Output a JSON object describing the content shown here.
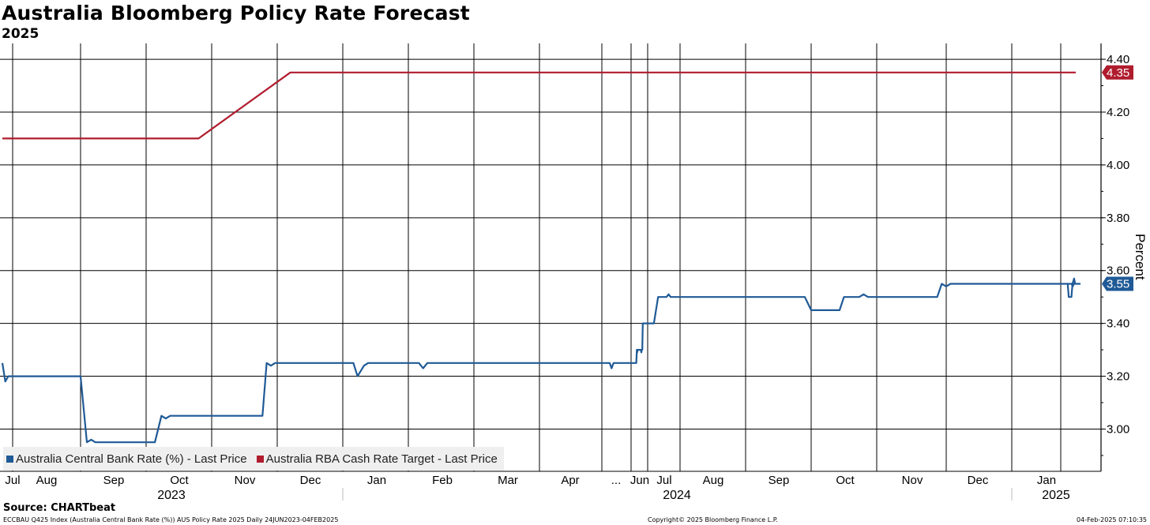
{
  "chart_data": {
    "type": "line",
    "title": "Australia Bloomberg Policy Rate Forecast",
    "subtitle": "2025",
    "ylabel": "Percent",
    "ylim": [
      2.84,
      4.46
    ],
    "yticks": [
      "4.40",
      "4.20",
      "4.00",
      "3.80",
      "3.60",
      "3.40",
      "3.20",
      "3.00"
    ],
    "x_month_labels": [
      "Jul",
      "Aug",
      "Sep",
      "Oct",
      "Nov",
      "Dec",
      "Jan",
      "Feb",
      "Mar",
      "Apr",
      "...",
      "Jun",
      "Jul",
      "Aug",
      "Sep",
      "Oct",
      "Nov",
      "Dec",
      "Jan"
    ],
    "x_year_labels": [
      "2023",
      "2024",
      "2025"
    ],
    "grid": true,
    "legend_position": "bottom-left",
    "series": [
      {
        "name": "Australia Central Bank Rate (%) - Last Price",
        "color": "#1f5a96",
        "last_value_label": "3.55",
        "points": [
          [
            "2023-06-24",
            3.25
          ],
          [
            "2023-06-26",
            3.18
          ],
          [
            "2023-06-28",
            3.2
          ],
          [
            "2023-08-01",
            3.2
          ],
          [
            "2023-08-04",
            2.95
          ],
          [
            "2023-08-06",
            2.96
          ],
          [
            "2023-08-08",
            2.95
          ],
          [
            "2023-09-05",
            2.95
          ],
          [
            "2023-09-08",
            3.05
          ],
          [
            "2023-09-10",
            3.04
          ],
          [
            "2023-09-12",
            3.05
          ],
          [
            "2023-10-25",
            3.05
          ],
          [
            "2023-10-27",
            3.25
          ],
          [
            "2023-10-29",
            3.24
          ],
          [
            "2023-10-31",
            3.25
          ],
          [
            "2023-12-06",
            3.25
          ],
          [
            "2023-12-08",
            3.2
          ],
          [
            "2023-12-11",
            3.24
          ],
          [
            "2023-12-13",
            3.25
          ],
          [
            "2024-01-06",
            3.25
          ],
          [
            "2024-01-08",
            3.23
          ],
          [
            "2024-01-10",
            3.25
          ],
          [
            "2024-04-09",
            3.25
          ],
          [
            "2024-04-11",
            3.23
          ],
          [
            "2024-04-13",
            3.25
          ],
          [
            "2024-05-30",
            3.25
          ],
          [
            "2024-06-02",
            3.3
          ],
          [
            "2024-06-04",
            3.29
          ],
          [
            "2024-06-06",
            3.3
          ],
          [
            "2024-06-24",
            3.3
          ],
          [
            "2024-06-27",
            3.29
          ],
          [
            "2024-06-29",
            3.3
          ],
          [
            "2024-07-02",
            3.3
          ],
          [
            "2024-07-05",
            3.4
          ],
          [
            "2024-08-07",
            3.4
          ],
          [
            "2024-08-11",
            3.5
          ],
          [
            "2024-08-19",
            3.5
          ],
          [
            "2024-08-21",
            3.51
          ],
          [
            "2024-08-23",
            3.5
          ],
          [
            "2024-10-29",
            3.5
          ],
          [
            "2024-11-01",
            3.45
          ],
          [
            "2024-11-14",
            3.45
          ],
          [
            "2024-11-16",
            3.5
          ],
          [
            "2024-11-23",
            3.5
          ],
          [
            "2024-11-25",
            3.51
          ],
          [
            "2024-11-27",
            3.5
          ],
          [
            "2024-12-28",
            3.5
          ],
          [
            "2024-12-30",
            3.55
          ],
          [
            "2025-01-01",
            3.54
          ],
          [
            "2025-01-03",
            3.55
          ],
          [
            "2025-02-07",
            3.55
          ],
          [
            "2025-02-09",
            3.54
          ],
          [
            "2025-02-11",
            3.55
          ],
          [
            "2025-03-14",
            3.55
          ],
          [
            "2025-03-16",
            3.5
          ],
          [
            "2025-03-21",
            3.5
          ],
          [
            "2025-03-23",
            3.55
          ],
          [
            "2025-03-26",
            3.57
          ],
          [
            "2025-03-28",
            3.55
          ],
          [
            "2025-04-07",
            3.55
          ]
        ]
      },
      {
        "name": "Australia RBA Cash Rate Target - Last Price",
        "color": "#b01c2e",
        "last_value_label": "4.35",
        "points": [
          [
            "2023-06-24",
            4.1
          ],
          [
            "2023-09-25",
            4.1
          ],
          [
            "2023-11-07",
            4.35
          ],
          [
            "2025-02-04",
            4.35
          ]
        ]
      }
    ]
  },
  "legend": {
    "items": [
      {
        "label": "Australia Central Bank Rate (%) - Last Price",
        "color": "#1f5a96"
      },
      {
        "label": "Australia RBA Cash Rate Target - Last Price",
        "color": "#b01c2e"
      }
    ]
  },
  "footer": {
    "source": "Source: CHARTbeat",
    "left": "ECCBAU Q425 Index (Australia Central Bank Rate (%)) AUS Policy Rate 2025  Daily 24JUN2023-04FEB2025",
    "center": "Copyright© 2025 Bloomberg Finance L.P.",
    "right": "04-Feb-2025 07:10:35"
  }
}
